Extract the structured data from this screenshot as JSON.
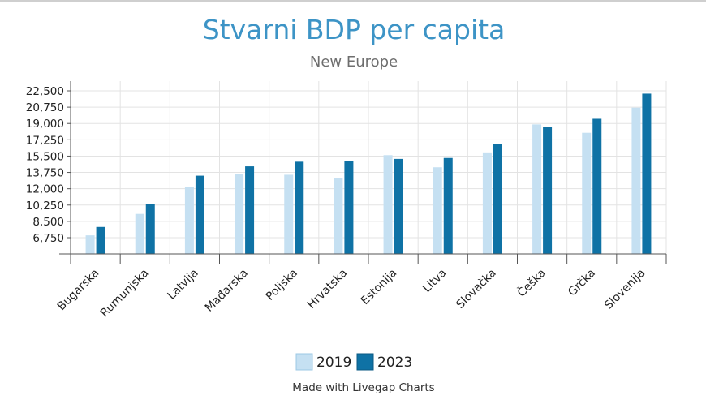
{
  "chart_data": {
    "type": "bar",
    "title": "Stvarni BDP per capita",
    "subtitle": "New Europe",
    "categories": [
      "Bugarska",
      "Rumunjska",
      "Latvija",
      "Mađarska",
      "Poljska",
      "Hrvatska",
      "Estonija",
      "Litva",
      "Slovačka",
      "Češka",
      "Grčka",
      "Slovenija"
    ],
    "series": [
      {
        "name": "2019",
        "color": "#c5e0f2",
        "values": [
          7000,
          9300,
          12200,
          13600,
          13500,
          13100,
          15600,
          14300,
          15900,
          18900,
          18000,
          20700
        ]
      },
      {
        "name": "2023",
        "color": "#0f72a5",
        "values": [
          7900,
          10400,
          13400,
          14400,
          14900,
          15000,
          15200,
          15300,
          16800,
          18600,
          19500,
          22200
        ]
      }
    ],
    "ylim": [
      5000,
      24000
    ],
    "yticks": [
      "6,750",
      "8,500",
      "10,250",
      "12,000",
      "13,750",
      "15,500",
      "17,250",
      "19,000",
      "20,750",
      "22,500"
    ],
    "ytick_values": [
      6750,
      8500,
      10250,
      12000,
      13750,
      15500,
      17250,
      19000,
      20750,
      22500
    ],
    "grid": true,
    "legend_position": "bottom",
    "footer": "Made with Livegap Charts"
  }
}
